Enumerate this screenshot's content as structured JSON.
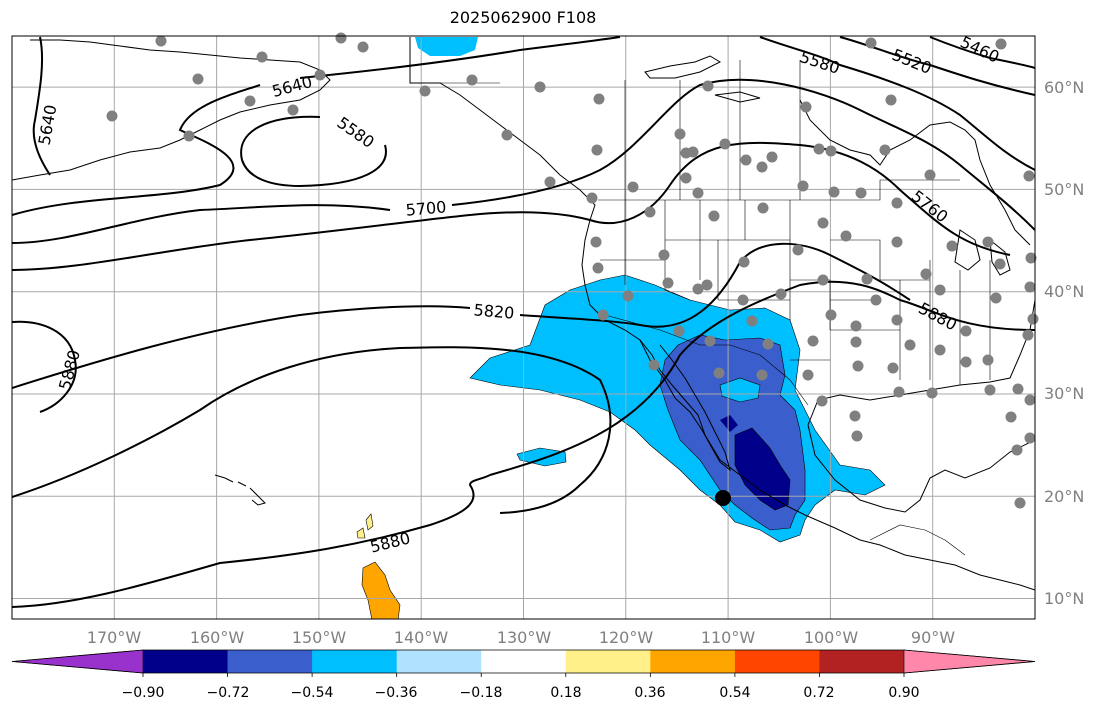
{
  "title": "2025062900 F108",
  "map": {
    "projection": "equirectangular",
    "lon_range": [
      -180,
      -80
    ],
    "lat_range": [
      8,
      65
    ],
    "background": "#ffffff",
    "grid": true,
    "lon_ticks": [
      {
        "lon": -170,
        "label": "170°W"
      },
      {
        "lon": -160,
        "label": "160°W"
      },
      {
        "lon": -150,
        "label": "150°W"
      },
      {
        "lon": -140,
        "label": "140°W"
      },
      {
        "lon": -130,
        "label": "130°W"
      },
      {
        "lon": -120,
        "label": "120°W"
      },
      {
        "lon": -110,
        "label": "110°W"
      },
      {
        "lon": -100,
        "label": "100°W"
      },
      {
        "lon": -90,
        "label": "90°W"
      }
    ],
    "lat_ticks": [
      {
        "lat": 60,
        "label": "60°N"
      },
      {
        "lat": 50,
        "label": "50°N"
      },
      {
        "lat": 40,
        "label": "40°N"
      },
      {
        "lat": 30,
        "label": "30°N"
      },
      {
        "lat": 20,
        "label": "20°N"
      },
      {
        "lat": 10,
        "label": "10°N"
      }
    ],
    "contour_labels": [
      "5640",
      "5580",
      "5520",
      "5460",
      "5700",
      "5760",
      "5820",
      "5880"
    ]
  },
  "colorbar": {
    "colors": [
      "#9932cc",
      "#00008b",
      "#3a5fcd",
      "#00bfff",
      "#b0e2ff",
      "#ffffff",
      "#fff08a",
      "#ffa500",
      "#ff4500",
      "#b22222",
      "#ff88aa"
    ],
    "ticks": [
      "−0.90",
      "−0.72",
      "−0.54",
      "−0.36",
      "−0.18",
      "0.18",
      "0.36",
      "0.54",
      "0.72",
      "0.90"
    ]
  },
  "colors": {
    "grid": "#a8a8a8",
    "coast": "#000000",
    "station_dot": "#808080",
    "marker": "#000000"
  }
}
